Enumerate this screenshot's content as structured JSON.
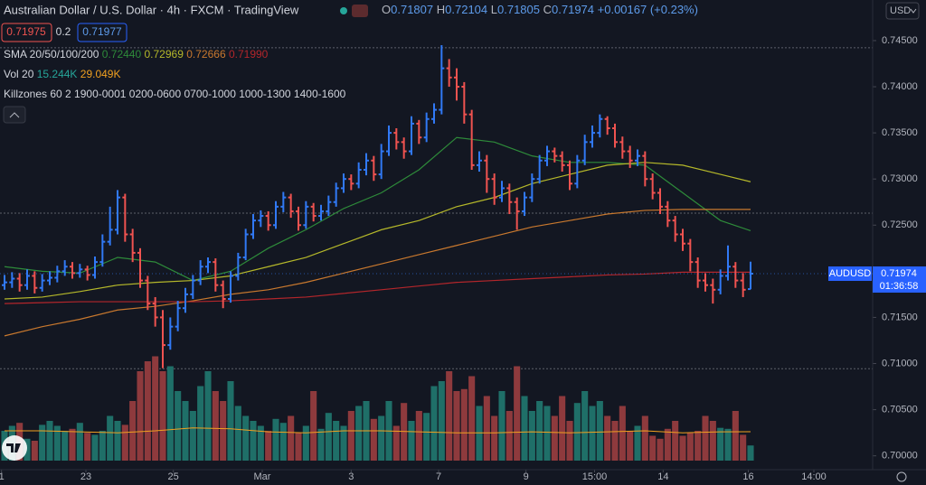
{
  "header": {
    "title": "Australian Dollar / U.S. Dollar · 4h · FXCM · TradingView",
    "ohlc": [
      [
        "O",
        "0.71807"
      ],
      [
        "H",
        "0.72104"
      ],
      [
        "L",
        "0.71805"
      ],
      [
        "C",
        "0.71974"
      ]
    ],
    "change": "+0.00167 (+0.23%)",
    "sell": "0.71975",
    "spread": "0.2",
    "buy": "0.71977",
    "sma_label": "SMA 20/50/100/200",
    "sma_values": [
      "0.72440",
      "0.72969",
      "0.72666",
      "0.71990"
    ],
    "vol_label": "Vol 20",
    "vol_values": [
      "15.244K",
      "29.049K"
    ],
    "killzones": "Killzones 60 2 1900-0001 0200-0600 0700-1000 1000-1300 1400-1600",
    "currency": "USD",
    "symbol": "AUDUSD",
    "last_price": "0.71974",
    "countdown": "01:36:58"
  },
  "chart_data": {
    "type": "ohlc",
    "up_color": "#3179f5",
    "down_color": "#ef5350",
    "xlim": [
      -0.6,
      115.2
    ],
    "xticks": [
      {
        "value": -0.4,
        "label": "1"
      },
      {
        "value": 10.8,
        "label": "23"
      },
      {
        "value": 22.4,
        "label": "25"
      },
      {
        "value": 34.2,
        "label": "Mar"
      },
      {
        "value": 46,
        "label": "3"
      },
      {
        "value": 57.6,
        "label": "7"
      },
      {
        "value": 69.2,
        "label": "9"
      },
      {
        "value": 78.3,
        "label": "15:00"
      },
      {
        "value": 87.4,
        "label": "14"
      },
      {
        "value": 98.7,
        "label": "16"
      },
      {
        "value": 107.4,
        "label": "14:00"
      }
    ],
    "ylim": [
      0.6985,
      0.7494
    ],
    "yticks": [
      {
        "value": 0.7,
        "label": "0.70000"
      },
      {
        "value": 0.705,
        "label": "0.70500"
      },
      {
        "value": 0.71,
        "label": "0.71000"
      },
      {
        "value": 0.715,
        "label": "0.71500"
      },
      {
        "value": 0.72,
        "label": "0.72000"
      },
      {
        "value": 0.725,
        "label": "0.72500"
      },
      {
        "value": 0.73,
        "label": "0.73000"
      },
      {
        "value": 0.735,
        "label": "0.73500"
      },
      {
        "value": 0.74,
        "label": "0.74000"
      },
      {
        "value": 0.745,
        "label": "0.74500"
      }
    ],
    "grid": false,
    "levels": [
      0.74422,
      0.7263,
      0.70944
    ],
    "open": [
      0.7185,
      0.7188,
      0.7192,
      0.7185,
      0.7195,
      0.7182,
      0.719,
      0.7193,
      0.72,
      0.7205,
      0.7198,
      0.7202,
      0.7196,
      0.721,
      0.7232,
      0.7245,
      0.728,
      0.724,
      0.722,
      0.719,
      0.7165,
      0.715,
      0.712,
      0.714,
      0.716,
      0.7175,
      0.719,
      0.7205,
      0.721,
      0.7185,
      0.717,
      0.7195,
      0.7215,
      0.724,
      0.7255,
      0.726,
      0.725,
      0.727,
      0.728,
      0.7265,
      0.725,
      0.727,
      0.726,
      0.7265,
      0.7275,
      0.729,
      0.73,
      0.7295,
      0.731,
      0.732,
      0.7305,
      0.733,
      0.735,
      0.734,
      0.733,
      0.736,
      0.7345,
      0.7365,
      0.7375,
      0.742,
      0.741,
      0.74,
      0.737,
      0.7315,
      0.732,
      0.73,
      0.728,
      0.729,
      0.7275,
      0.7265,
      0.728,
      0.73,
      0.732,
      0.733,
      0.7325,
      0.7315,
      0.7295,
      0.732,
      0.734,
      0.735,
      0.7365,
      0.7355,
      0.734,
      0.733,
      0.732,
      0.7325,
      0.73,
      0.7285,
      0.727,
      0.7255,
      0.724,
      0.723,
      0.721,
      0.719,
      0.7185,
      0.718,
      0.7195,
      0.7205,
      0.719,
      0.71807
    ],
    "high": [
      0.7196,
      0.7199,
      0.7198,
      0.7202,
      0.72,
      0.7197,
      0.72,
      0.7206,
      0.7212,
      0.721,
      0.7208,
      0.7206,
      0.7216,
      0.724,
      0.727,
      0.7288,
      0.7284,
      0.7246,
      0.7225,
      0.7195,
      0.7172,
      0.7158,
      0.715,
      0.7168,
      0.7182,
      0.7196,
      0.7212,
      0.7215,
      0.7214,
      0.719,
      0.72,
      0.722,
      0.7246,
      0.7262,
      0.7266,
      0.7265,
      0.7276,
      0.7286,
      0.7284,
      0.727,
      0.7276,
      0.7274,
      0.7272,
      0.7282,
      0.7296,
      0.7306,
      0.7305,
      0.7318,
      0.7328,
      0.7325,
      0.7338,
      0.7358,
      0.7355,
      0.7345,
      0.7368,
      0.7364,
      0.7372,
      0.7382,
      0.7445,
      0.743,
      0.742,
      0.7405,
      0.7375,
      0.733,
      0.7326,
      0.7306,
      0.7298,
      0.7295,
      0.728,
      0.7286,
      0.7306,
      0.7326,
      0.7336,
      0.7334,
      0.733,
      0.732,
      0.7326,
      0.7348,
      0.7358,
      0.737,
      0.7368,
      0.736,
      0.7346,
      0.7336,
      0.7332,
      0.733,
      0.7306,
      0.729,
      0.7276,
      0.726,
      0.7246,
      0.7235,
      0.7215,
      0.7198,
      0.7192,
      0.7202,
      0.7228,
      0.721,
      0.7198,
      0.72104
    ],
    "low": [
      0.718,
      0.7182,
      0.7178,
      0.718,
      0.7176,
      0.7178,
      0.7185,
      0.7188,
      0.7195,
      0.7192,
      0.7193,
      0.719,
      0.7192,
      0.7205,
      0.7228,
      0.724,
      0.7232,
      0.721,
      0.7182,
      0.7158,
      0.714,
      0.7095,
      0.7115,
      0.7135,
      0.7155,
      0.717,
      0.7185,
      0.7198,
      0.7178,
      0.716,
      0.7166,
      0.719,
      0.7212,
      0.7235,
      0.7248,
      0.7244,
      0.7246,
      0.7264,
      0.7258,
      0.7244,
      0.7246,
      0.7254,
      0.7255,
      0.726,
      0.727,
      0.7285,
      0.7288,
      0.729,
      0.7304,
      0.7298,
      0.73,
      0.7325,
      0.7332,
      0.7322,
      0.7326,
      0.7338,
      0.734,
      0.736,
      0.737,
      0.74,
      0.7385,
      0.736,
      0.731,
      0.7308,
      0.7285,
      0.7272,
      0.7275,
      0.7262,
      0.7245,
      0.726,
      0.7275,
      0.7295,
      0.7314,
      0.7318,
      0.7308,
      0.7288,
      0.729,
      0.7315,
      0.7334,
      0.7345,
      0.7348,
      0.7334,
      0.7322,
      0.7312,
      0.7314,
      0.7292,
      0.7278,
      0.7262,
      0.7248,
      0.7232,
      0.7222,
      0.72,
      0.7182,
      0.7178,
      0.7165,
      0.7175,
      0.719,
      0.7182,
      0.7172,
      0.71805
    ],
    "close": [
      0.7188,
      0.7192,
      0.7185,
      0.7195,
      0.7182,
      0.719,
      0.7193,
      0.72,
      0.7205,
      0.7198,
      0.7202,
      0.7196,
      0.721,
      0.7232,
      0.7245,
      0.728,
      0.724,
      0.722,
      0.719,
      0.7165,
      0.715,
      0.712,
      0.714,
      0.716,
      0.7175,
      0.719,
      0.7205,
      0.721,
      0.7185,
      0.717,
      0.7195,
      0.7215,
      0.724,
      0.7255,
      0.726,
      0.725,
      0.727,
      0.728,
      0.7265,
      0.725,
      0.727,
      0.726,
      0.7265,
      0.7275,
      0.729,
      0.73,
      0.7295,
      0.731,
      0.732,
      0.7305,
      0.733,
      0.735,
      0.734,
      0.733,
      0.736,
      0.7345,
      0.7365,
      0.7375,
      0.742,
      0.741,
      0.74,
      0.737,
      0.7315,
      0.732,
      0.73,
      0.728,
      0.729,
      0.7275,
      0.7265,
      0.728,
      0.73,
      0.732,
      0.733,
      0.7325,
      0.7315,
      0.7295,
      0.732,
      0.734,
      0.735,
      0.7365,
      0.7355,
      0.734,
      0.733,
      0.732,
      0.7325,
      0.73,
      0.7285,
      0.727,
      0.7255,
      0.724,
      0.723,
      0.721,
      0.719,
      0.7185,
      0.718,
      0.7195,
      0.7205,
      0.719,
      0.718,
      0.71974
    ],
    "sma_x": [
      0,
      5,
      10,
      15,
      20,
      25,
      30,
      35,
      40,
      45,
      50,
      55,
      60,
      65,
      70,
      75,
      80,
      85,
      90,
      95,
      99
    ],
    "lines": [
      {
        "color": "#2e8b3a",
        "values": [
          0.7205,
          0.72,
          0.7198,
          0.7215,
          0.721,
          0.719,
          0.72,
          0.7225,
          0.7245,
          0.7268,
          0.7285,
          0.731,
          0.7345,
          0.734,
          0.7325,
          0.7318,
          0.7318,
          0.7315,
          0.7285,
          0.7255,
          0.7244
        ]
      },
      {
        "color": "#b5b82a",
        "values": [
          0.717,
          0.7172,
          0.7178,
          0.7185,
          0.7188,
          0.719,
          0.7195,
          0.7205,
          0.7215,
          0.723,
          0.7245,
          0.7255,
          0.727,
          0.728,
          0.7295,
          0.7305,
          0.7315,
          0.7318,
          0.7315,
          0.7305,
          0.7297
        ]
      },
      {
        "color": "#c8782e",
        "values": [
          0.713,
          0.714,
          0.7148,
          0.7158,
          0.7162,
          0.7168,
          0.7175,
          0.718,
          0.7188,
          0.7198,
          0.7208,
          0.7218,
          0.7228,
          0.7238,
          0.7248,
          0.7255,
          0.7262,
          0.7266,
          0.7267,
          0.7267,
          0.7267
        ]
      },
      {
        "color": "#b3262b",
        "values": [
          0.7165,
          0.7166,
          0.7167,
          0.7167,
          0.7167,
          0.7167,
          0.7168,
          0.717,
          0.7172,
          0.7176,
          0.718,
          0.7184,
          0.7188,
          0.719,
          0.7192,
          0.7194,
          0.7196,
          0.7197,
          0.7199,
          0.7199,
          0.7199
        ]
      }
    ],
    "volume_ylim": [
      0,
      130
    ],
    "volume_up_color": "#1f6f68",
    "volume_down_color": "#8e3a3d",
    "volume": [
      30,
      35,
      38,
      22,
      20,
      36,
      40,
      35,
      30,
      32,
      38,
      28,
      26,
      30,
      45,
      40,
      36,
      60,
      90,
      100,
      105,
      90,
      95,
      70,
      60,
      50,
      75,
      90,
      70,
      60,
      80,
      55,
      45,
      40,
      35,
      30,
      42,
      38,
      45,
      28,
      35,
      70,
      32,
      48,
      40,
      35,
      50,
      55,
      60,
      42,
      45,
      60,
      35,
      58,
      40,
      50,
      48,
      75,
      80,
      90,
      70,
      72,
      85,
      55,
      65,
      45,
      70,
      50,
      95,
      65,
      50,
      60,
      55,
      45,
      65,
      40,
      58,
      70,
      55,
      60,
      45,
      40,
      55,
      30,
      35,
      45,
      25,
      22,
      32,
      40,
      25,
      28,
      30,
      45,
      40,
      33,
      32,
      50,
      26,
      15.244
    ],
    "volume_ma": {
      "color": "#f0a020",
      "values": [
        30,
        30,
        29,
        28,
        30,
        33,
        32,
        29,
        28,
        30,
        30,
        29,
        28,
        28,
        29,
        28,
        29,
        30,
        28,
        29,
        29.049
      ]
    }
  }
}
